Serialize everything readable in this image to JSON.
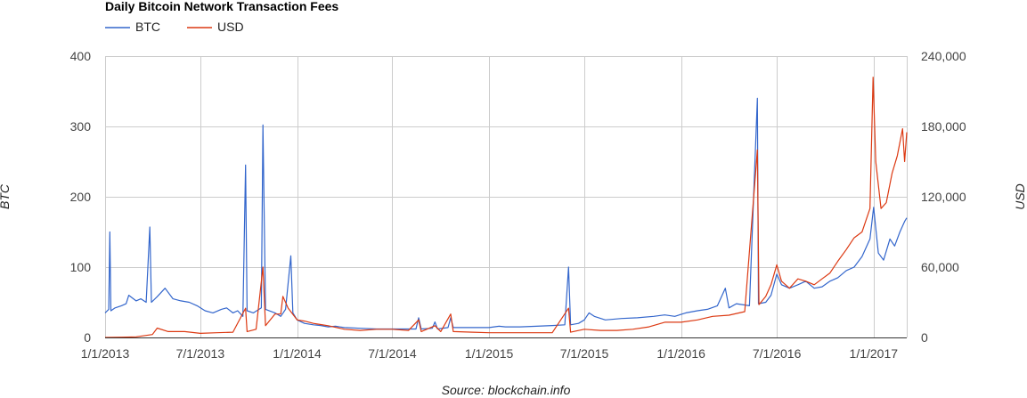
{
  "chart_data": {
    "type": "line",
    "title": "Daily Bitcoin Network Transaction Fees",
    "source": "Source: blockchain.info",
    "legend_position": "top-left",
    "grid": true,
    "x_axis": {
      "type": "date",
      "range": [
        "2013-01-01",
        "2017-03-05"
      ],
      "ticks": [
        {
          "date": "2013-01-01",
          "label": "1/1/2013"
        },
        {
          "date": "2013-07-01",
          "label": "7/1/2013"
        },
        {
          "date": "2014-01-01",
          "label": "1/1/2014"
        },
        {
          "date": "2014-07-01",
          "label": "7/1/2014"
        },
        {
          "date": "2015-01-01",
          "label": "1/1/2015"
        },
        {
          "date": "2015-07-01",
          "label": "7/1/2015"
        },
        {
          "date": "2016-01-01",
          "label": "1/1/2016"
        },
        {
          "date": "2016-07-01",
          "label": "7/1/2016"
        },
        {
          "date": "2017-01-01",
          "label": "1/1/2017"
        }
      ]
    },
    "y_left": {
      "label": "BTC",
      "range": [
        0,
        400
      ],
      "ticks": [
        {
          "value": 0,
          "label": "0"
        },
        {
          "value": 100,
          "label": "100"
        },
        {
          "value": 200,
          "label": "200"
        },
        {
          "value": 300,
          "label": "300"
        },
        {
          "value": 400,
          "label": "400"
        }
      ]
    },
    "y_right": {
      "label": "USD",
      "range": [
        0,
        240000
      ],
      "ticks": [
        {
          "value": 0,
          "label": "0"
        },
        {
          "value": 60000,
          "label": "60,000"
        },
        {
          "value": 120000,
          "label": "120,000"
        },
        {
          "value": 180000,
          "label": "180,000"
        },
        {
          "value": 240000,
          "label": "240,000"
        }
      ]
    },
    "series": [
      {
        "name": "BTC",
        "axis": "left",
        "color": "#3366cc",
        "points": [
          [
            "2013-01-01",
            35
          ],
          [
            "2013-01-08",
            40
          ],
          [
            "2013-01-10",
            150
          ],
          [
            "2013-01-12",
            38
          ],
          [
            "2013-01-20",
            42
          ],
          [
            "2013-02-01",
            45
          ],
          [
            "2013-02-10",
            48
          ],
          [
            "2013-02-15",
            60
          ],
          [
            "2013-03-01",
            52
          ],
          [
            "2013-03-10",
            55
          ],
          [
            "2013-03-20",
            50
          ],
          [
            "2013-03-27",
            157
          ],
          [
            "2013-03-30",
            50
          ],
          [
            "2013-04-10",
            58
          ],
          [
            "2013-04-25",
            70
          ],
          [
            "2013-05-10",
            55
          ],
          [
            "2013-05-25",
            52
          ],
          [
            "2013-06-10",
            50
          ],
          [
            "2013-06-25",
            45
          ],
          [
            "2013-07-10",
            38
          ],
          [
            "2013-07-25",
            35
          ],
          [
            "2013-08-10",
            40
          ],
          [
            "2013-08-20",
            42
          ],
          [
            "2013-09-01",
            35
          ],
          [
            "2013-09-10",
            38
          ],
          [
            "2013-09-20",
            30
          ],
          [
            "2013-09-25",
            245
          ],
          [
            "2013-09-28",
            38
          ],
          [
            "2013-10-10",
            35
          ],
          [
            "2013-10-25",
            42
          ],
          [
            "2013-10-28",
            302
          ],
          [
            "2013-11-02",
            40
          ],
          [
            "2013-11-20",
            35
          ],
          [
            "2013-12-01",
            30
          ],
          [
            "2013-12-10",
            40
          ],
          [
            "2013-12-20",
            116
          ],
          [
            "2013-12-24",
            35
          ],
          [
            "2014-01-01",
            25
          ],
          [
            "2014-01-15",
            20
          ],
          [
            "2014-02-01",
            18
          ],
          [
            "2014-02-15",
            17
          ],
          [
            "2014-03-01",
            15
          ],
          [
            "2014-03-15",
            16
          ],
          [
            "2014-04-01",
            14
          ],
          [
            "2014-05-01",
            13
          ],
          [
            "2014-06-01",
            12
          ],
          [
            "2014-07-01",
            12
          ],
          [
            "2014-08-01",
            12
          ],
          [
            "2014-08-15",
            12
          ],
          [
            "2014-08-20",
            28
          ],
          [
            "2014-08-25",
            12
          ],
          [
            "2014-09-15",
            13
          ],
          [
            "2014-09-20",
            22
          ],
          [
            "2014-09-25",
            12
          ],
          [
            "2014-10-15",
            14
          ],
          [
            "2014-10-20",
            28
          ],
          [
            "2014-10-25",
            14
          ],
          [
            "2014-11-15",
            14
          ],
          [
            "2014-12-15",
            14
          ],
          [
            "2015-01-01",
            14
          ],
          [
            "2015-01-20",
            16
          ],
          [
            "2015-02-01",
            15
          ],
          [
            "2015-03-01",
            15
          ],
          [
            "2015-04-01",
            16
          ],
          [
            "2015-05-01",
            17
          ],
          [
            "2015-05-25",
            18
          ],
          [
            "2015-06-01",
            100
          ],
          [
            "2015-06-05",
            18
          ],
          [
            "2015-06-20",
            20
          ],
          [
            "2015-07-01",
            25
          ],
          [
            "2015-07-10",
            35
          ],
          [
            "2015-07-20",
            30
          ],
          [
            "2015-08-10",
            25
          ],
          [
            "2015-09-10",
            27
          ],
          [
            "2015-10-10",
            28
          ],
          [
            "2015-11-10",
            30
          ],
          [
            "2015-12-01",
            32
          ],
          [
            "2015-12-20",
            30
          ],
          [
            "2016-01-10",
            35
          ],
          [
            "2016-02-01",
            38
          ],
          [
            "2016-02-20",
            40
          ],
          [
            "2016-03-10",
            45
          ],
          [
            "2016-03-25",
            70
          ],
          [
            "2016-04-01",
            42
          ],
          [
            "2016-04-15",
            48
          ],
          [
            "2016-05-10",
            45
          ],
          [
            "2016-05-25",
            340
          ],
          [
            "2016-05-27",
            48
          ],
          [
            "2016-06-10",
            50
          ],
          [
            "2016-06-20",
            60
          ],
          [
            "2016-07-01",
            90
          ],
          [
            "2016-07-10",
            75
          ],
          [
            "2016-07-25",
            70
          ],
          [
            "2016-08-10",
            75
          ],
          [
            "2016-08-25",
            80
          ],
          [
            "2016-09-10",
            70
          ],
          [
            "2016-09-25",
            72
          ],
          [
            "2016-10-10",
            80
          ],
          [
            "2016-10-25",
            85
          ],
          [
            "2016-11-10",
            95
          ],
          [
            "2016-11-25",
            100
          ],
          [
            "2016-12-10",
            115
          ],
          [
            "2016-12-25",
            140
          ],
          [
            "2017-01-01",
            185
          ],
          [
            "2017-01-10",
            120
          ],
          [
            "2017-01-20",
            110
          ],
          [
            "2017-02-01",
            140
          ],
          [
            "2017-02-10",
            130
          ],
          [
            "2017-02-20",
            150
          ],
          [
            "2017-03-01",
            165
          ],
          [
            "2017-03-05",
            170
          ]
        ]
      },
      {
        "name": "USD",
        "axis": "right",
        "color": "#dc3912",
        "points": [
          [
            "2013-01-01",
            0
          ],
          [
            "2013-02-01",
            200
          ],
          [
            "2013-03-01",
            500
          ],
          [
            "2013-04-01",
            2500
          ],
          [
            "2013-04-10",
            8000
          ],
          [
            "2013-05-01",
            5000
          ],
          [
            "2013-06-01",
            5000
          ],
          [
            "2013-07-01",
            3500
          ],
          [
            "2013-08-01",
            4000
          ],
          [
            "2013-09-01",
            4500
          ],
          [
            "2013-09-25",
            25000
          ],
          [
            "2013-09-28",
            5000
          ],
          [
            "2013-10-15",
            7000
          ],
          [
            "2013-10-28",
            60000
          ],
          [
            "2013-11-02",
            10000
          ],
          [
            "2013-11-20",
            20000
          ],
          [
            "2013-12-01",
            20000
          ],
          [
            "2013-12-05",
            35000
          ],
          [
            "2013-12-15",
            25000
          ],
          [
            "2014-01-01",
            15000
          ],
          [
            "2014-01-15",
            14000
          ],
          [
            "2014-02-01",
            12000
          ],
          [
            "2014-02-15",
            11000
          ],
          [
            "2014-03-01",
            10000
          ],
          [
            "2014-04-01",
            7000
          ],
          [
            "2014-05-01",
            6000
          ],
          [
            "2014-06-01",
            7000
          ],
          [
            "2014-07-01",
            7000
          ],
          [
            "2014-08-01",
            6000
          ],
          [
            "2014-08-20",
            15000
          ],
          [
            "2014-08-25",
            5000
          ],
          [
            "2014-09-20",
            10000
          ],
          [
            "2014-10-01",
            5000
          ],
          [
            "2014-10-20",
            20000
          ],
          [
            "2014-10-25",
            5000
          ],
          [
            "2014-12-01",
            4500
          ],
          [
            "2015-01-01",
            4000
          ],
          [
            "2015-02-01",
            4000
          ],
          [
            "2015-03-01",
            4000
          ],
          [
            "2015-04-01",
            4000
          ],
          [
            "2015-05-01",
            4000
          ],
          [
            "2015-06-01",
            25000
          ],
          [
            "2015-06-05",
            4500
          ],
          [
            "2015-07-01",
            7000
          ],
          [
            "2015-08-01",
            6000
          ],
          [
            "2015-09-01",
            6000
          ],
          [
            "2015-10-01",
            7000
          ],
          [
            "2015-11-01",
            9000
          ],
          [
            "2015-12-01",
            13000
          ],
          [
            "2016-01-01",
            13000
          ],
          [
            "2016-02-01",
            15000
          ],
          [
            "2016-03-01",
            18000
          ],
          [
            "2016-04-01",
            19000
          ],
          [
            "2016-05-01",
            22000
          ],
          [
            "2016-05-25",
            160000
          ],
          [
            "2016-05-28",
            28000
          ],
          [
            "2016-06-10",
            35000
          ],
          [
            "2016-06-20",
            45000
          ],
          [
            "2016-07-01",
            62000
          ],
          [
            "2016-07-10",
            48000
          ],
          [
            "2016-07-25",
            42000
          ],
          [
            "2016-08-10",
            50000
          ],
          [
            "2016-08-25",
            48000
          ],
          [
            "2016-09-10",
            45000
          ],
          [
            "2016-09-25",
            50000
          ],
          [
            "2016-10-10",
            55000
          ],
          [
            "2016-10-25",
            65000
          ],
          [
            "2016-11-10",
            75000
          ],
          [
            "2016-11-25",
            85000
          ],
          [
            "2016-12-10",
            90000
          ],
          [
            "2016-12-25",
            110000
          ],
          [
            "2016-12-31",
            222000
          ],
          [
            "2017-01-05",
            150000
          ],
          [
            "2017-01-15",
            110000
          ],
          [
            "2017-01-25",
            115000
          ],
          [
            "2017-02-05",
            140000
          ],
          [
            "2017-02-15",
            155000
          ],
          [
            "2017-02-25",
            178000
          ],
          [
            "2017-03-01",
            150000
          ],
          [
            "2017-03-05",
            175000
          ]
        ]
      }
    ]
  }
}
